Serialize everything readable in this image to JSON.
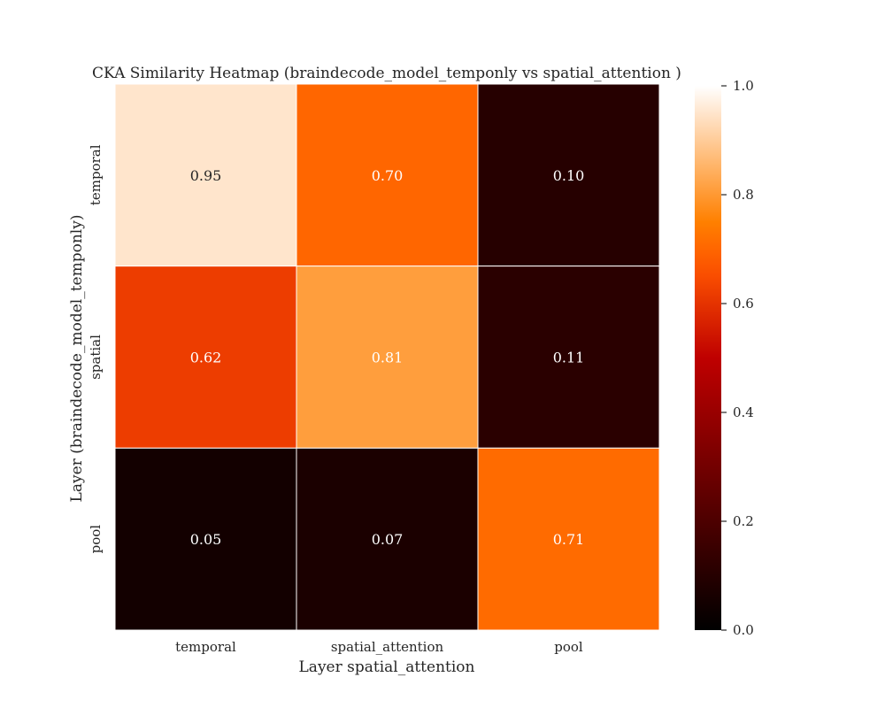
{
  "chart_data": {
    "type": "heatmap",
    "title": "CKA Similarity Heatmap (braindecode_model_temponly vs spatial_attention )",
    "xlabel": "Layer spatial_attention",
    "ylabel": "Layer (braindecode_model_temponly)",
    "x_categories": [
      "temporal",
      "spatial_attention",
      "pool"
    ],
    "y_categories": [
      "temporal",
      "spatial",
      "pool"
    ],
    "values": [
      [
        0.95,
        0.7,
        0.1
      ],
      [
        0.62,
        0.81,
        0.11
      ],
      [
        0.05,
        0.07,
        0.71
      ]
    ],
    "value_labels": [
      [
        "0.95",
        "0.70",
        "0.10"
      ],
      [
        "0.62",
        "0.81",
        "0.11"
      ],
      [
        "0.05",
        "0.07",
        "0.71"
      ]
    ],
    "colormap": "gist_heat",
    "vmin": 0.0,
    "vmax": 1.0,
    "colorbar": {
      "ticks": [
        0.0,
        0.2,
        0.4,
        0.6,
        0.8,
        1.0
      ],
      "tick_labels": [
        "0.0",
        "0.2",
        "0.4",
        "0.6",
        "0.8",
        "1.0"
      ]
    },
    "grid": false,
    "cell_border_color": "#ffffff"
  }
}
